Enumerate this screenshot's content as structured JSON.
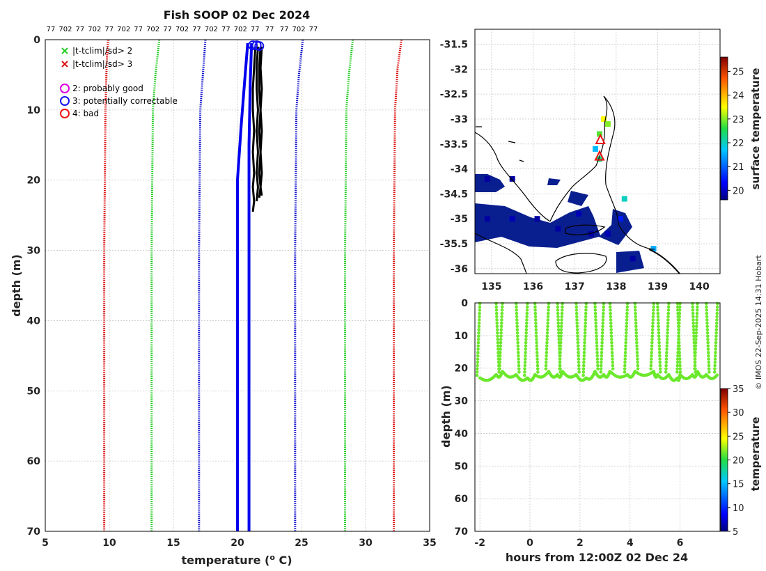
{
  "profile_chart": {
    "type": "line",
    "title": "Fish SOOP 02 Dec 2024",
    "xlabel_pre": "temperature (",
    "xlabel_sup": "o",
    "xlabel_post": " C)",
    "ylabel": "depth (m)",
    "xlim": [
      5,
      35
    ],
    "ylim": [
      0,
      70
    ],
    "xticks": [
      "5",
      "10",
      "15",
      "20",
      "25",
      "30",
      "35"
    ],
    "yticks": [
      "0",
      "10",
      "20",
      "30",
      "40",
      "50",
      "60",
      "70"
    ],
    "top_codes": [
      "77",
      "702",
      "77",
      "702",
      "77",
      "702",
      "77",
      "702",
      "77",
      "702",
      "77",
      "702",
      "77",
      "702",
      "77",
      "77",
      "77",
      "702",
      "77"
    ],
    "legend": {
      "cross_green": "|t-tclim|/sd> 2",
      "cross_red": "|t-tclim|/sd> 3",
      "ring_magenta": "2: probably good",
      "ring_blue": "3: potentially correctable",
      "ring_red": "4: bad"
    },
    "series": [
      {
        "name": "climatology -3sd",
        "color": "#dd1111",
        "style": "dotted",
        "points": [
          [
            9.9,
            0
          ],
          [
            9.8,
            3
          ],
          [
            9.7,
            10
          ],
          [
            9.6,
            30
          ],
          [
            9.6,
            70
          ]
        ]
      },
      {
        "name": "climatology -2sd",
        "color": "#22cc22",
        "style": "dotted",
        "points": [
          [
            13.9,
            0
          ],
          [
            13.6,
            5
          ],
          [
            13.4,
            10
          ],
          [
            13.3,
            30
          ],
          [
            13.3,
            70
          ]
        ]
      },
      {
        "name": "climatology -1sd",
        "color": "#1111cc",
        "style": "dotted",
        "points": [
          [
            17.5,
            0
          ],
          [
            17.3,
            5
          ],
          [
            17.1,
            10
          ],
          [
            17.0,
            30
          ],
          [
            17.0,
            70
          ]
        ]
      },
      {
        "name": "climatology +1sd",
        "color": "#1111cc",
        "style": "dotted",
        "points": [
          [
            25.1,
            0
          ],
          [
            24.8,
            5
          ],
          [
            24.6,
            10
          ],
          [
            24.5,
            30
          ],
          [
            24.5,
            70
          ]
        ]
      },
      {
        "name": "climatology +2sd",
        "color": "#22cc22",
        "style": "dotted",
        "points": [
          [
            29.0,
            0
          ],
          [
            28.7,
            5
          ],
          [
            28.5,
            10
          ],
          [
            28.4,
            30
          ],
          [
            28.4,
            70
          ]
        ]
      },
      {
        "name": "climatology +3sd",
        "color": "#dd1111",
        "style": "dotted",
        "points": [
          [
            32.8,
            0
          ],
          [
            32.5,
            4
          ],
          [
            32.3,
            10
          ],
          [
            32.2,
            30
          ],
          [
            32.2,
            70
          ]
        ]
      },
      {
        "name": "climatology mean A",
        "color": "#0000ee",
        "style": "solid",
        "points": [
          [
            20.8,
            0.5
          ],
          [
            20.6,
            5
          ],
          [
            20.3,
            12
          ],
          [
            20.0,
            20
          ],
          [
            20.0,
            70
          ]
        ]
      },
      {
        "name": "climatology mean B",
        "color": "#0000ee",
        "style": "solid",
        "points": [
          [
            21.1,
            0.5
          ],
          [
            21.0,
            6
          ],
          [
            20.9,
            15
          ],
          [
            20.9,
            30
          ],
          [
            20.9,
            70
          ]
        ]
      }
    ],
    "profiles": [
      {
        "t": [
          21.4,
          21.3,
          21.2,
          21.2,
          21.3,
          21.2,
          21.3,
          21.2,
          21.3,
          21.2
        ],
        "d": [
          1,
          4,
          7,
          10,
          13,
          16,
          19,
          21,
          23,
          24.5
        ]
      },
      {
        "t": [
          21.6,
          21.5,
          21.5,
          21.6,
          21.5,
          21.6,
          21.5,
          21.6,
          21.5
        ],
        "d": [
          1,
          4,
          7,
          10,
          13,
          16,
          19,
          21,
          23
        ]
      },
      {
        "t": [
          21.8,
          21.7,
          21.7,
          21.8,
          21.7,
          21.8,
          21.7,
          21.8,
          21.7
        ],
        "d": [
          1,
          4,
          7,
          10,
          13,
          16,
          19,
          21,
          22.5
        ]
      },
      {
        "t": [
          21.9,
          21.8,
          21.9,
          21.8,
          21.9,
          21.8,
          21.9,
          21.8,
          21.9
        ],
        "d": [
          1,
          4,
          7,
          10,
          13,
          16,
          19,
          21,
          22.2
        ]
      }
    ],
    "flagged_rings": [
      {
        "t": 21.2,
        "d": 0.8,
        "flag": "blue"
      },
      {
        "t": 21.5,
        "d": 0.8,
        "flag": "blue"
      },
      {
        "t": 21.7,
        "d": 0.9,
        "flag": "blue"
      }
    ]
  },
  "map_chart": {
    "type": "heatmap",
    "xticks": [
      "135",
      "136",
      "137",
      "138",
      "139",
      "140"
    ],
    "yticks": [
      "-31.5",
      "-32",
      "-32.5",
      "-33",
      "-33.5",
      "-34",
      "-34.5",
      "-35",
      "-35.5",
      "-36"
    ],
    "xlim": [
      134.6,
      140.5
    ],
    "ylim": [
      -36.1,
      -31.2
    ],
    "colorbar_ticks": [
      "20",
      "21",
      "22",
      "23",
      "24",
      "25"
    ],
    "colorbar_label": "surface temperature",
    "colorbar_range": [
      19.6,
      25.6
    ],
    "cells": [
      {
        "lon": 134.9,
        "lat": -34.2,
        "v": 19.8
      },
      {
        "lon": 135.5,
        "lat": -34.2,
        "v": 19.8
      },
      {
        "lon": 134.9,
        "lat": -35.0,
        "v": 19.8
      },
      {
        "lon": 135.5,
        "lat": -35.0,
        "v": 19.9
      },
      {
        "lon": 136.1,
        "lat": -35.0,
        "v": 19.8
      },
      {
        "lon": 136.6,
        "lat": -35.2,
        "v": 19.8
      },
      {
        "lon": 137.1,
        "lat": -34.9,
        "v": 19.9
      },
      {
        "lon": 137.4,
        "lat": -35.3,
        "v": 19.8
      },
      {
        "lon": 137.8,
        "lat": -35.3,
        "v": 19.9
      },
      {
        "lon": 138.1,
        "lat": -35.0,
        "v": 20.5
      },
      {
        "lon": 138.2,
        "lat": -34.6,
        "v": 22.0
      },
      {
        "lon": 138.4,
        "lat": -35.8,
        "v": 19.8
      },
      {
        "lon": 138.9,
        "lat": -35.6,
        "v": 21.5
      },
      {
        "lon": 137.6,
        "lat": -33.3,
        "v": 22.8
      },
      {
        "lon": 137.7,
        "lat": -33.0,
        "v": 23.5
      },
      {
        "lon": 137.8,
        "lat": -33.1,
        "v": 23.0
      },
      {
        "lon": 137.5,
        "lat": -33.6,
        "v": 21.6
      },
      {
        "lon": 137.6,
        "lat": -33.8,
        "v": 22.3
      }
    ],
    "markers": [
      {
        "lon": 137.62,
        "lat": -33.42
      },
      {
        "lon": 137.6,
        "lat": -33.75
      }
    ]
  },
  "section_chart": {
    "type": "scatter",
    "xlabel": "hours from 12:00Z 02 Dec 24",
    "ylabel": "depth (m)",
    "xlim": [
      -2.2,
      7.6
    ],
    "ylim": [
      0,
      70
    ],
    "xticks": [
      "-2",
      "0",
      "2",
      "4",
      "6"
    ],
    "yticks": [
      "0",
      "10",
      "20",
      "30",
      "40",
      "50",
      "60",
      "70"
    ],
    "casts": [
      -2.0,
      -1.35,
      -1.1,
      -0.55,
      -0.1,
      0.2,
      0.75,
      1.1,
      1.3,
      1.85,
      2.25,
      2.6,
      2.95,
      3.2,
      3.9,
      4.2,
      4.95,
      5.1,
      5.55,
      5.9,
      6.0,
      6.5,
      6.7,
      7.05,
      7.5
    ],
    "bottom_depths": [
      23,
      22,
      21,
      22,
      23,
      22,
      21,
      22,
      21,
      22,
      23,
      21,
      22,
      21,
      22,
      21,
      21,
      22,
      22,
      23,
      22,
      22,
      21,
      22,
      22
    ],
    "colorbar_ticks": [
      "5",
      "10",
      "15",
      "20",
      "25",
      "30",
      "35"
    ],
    "colorbar_label": "temperature",
    "colorbar_range": [
      5,
      35
    ],
    "value": 21.5
  },
  "side_text": "© IMOS 22-Sep-2025 14:31 Hobart"
}
